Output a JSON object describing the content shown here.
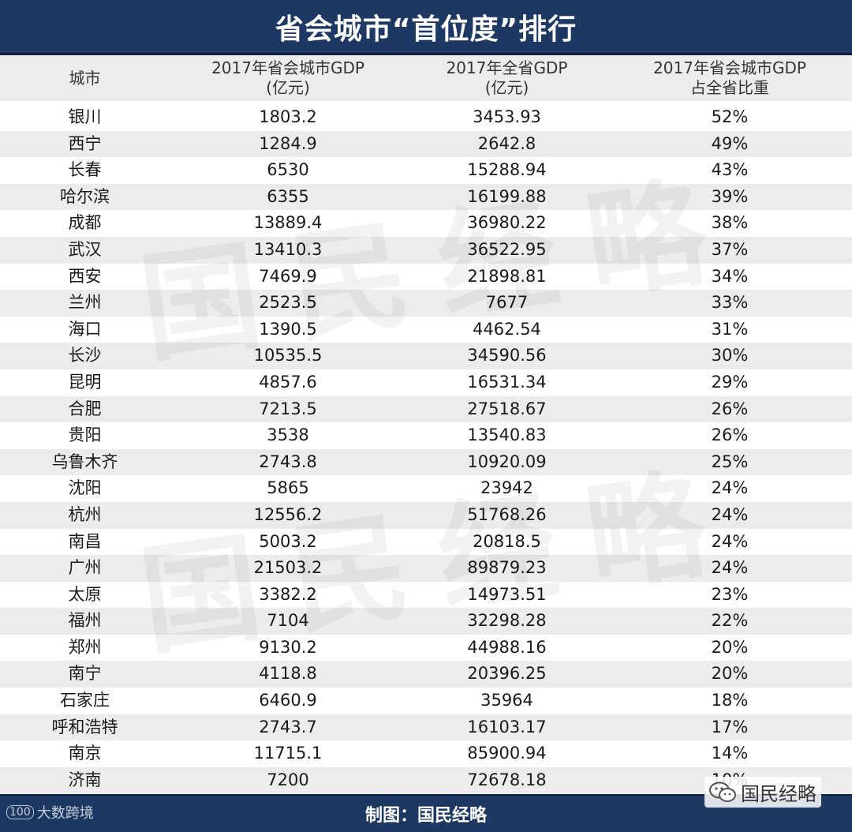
{
  "title": "省会城市“首位度”排行",
  "headers": {
    "city": "城市",
    "city_gdp_line1": "2017年省会城市GDP",
    "city_gdp_line2": "(亿元)",
    "prov_gdp_line1": "2017年全省GDP",
    "prov_gdp_line2": "(亿元)",
    "ratio_line1": "2017年省会城市GDP",
    "ratio_line2": "占全省比重"
  },
  "rows": [
    {
      "city": "银川",
      "gdp": "1803.2",
      "prov": "3453.93",
      "ratio": "52%"
    },
    {
      "city": "西宁",
      "gdp": "1284.9",
      "prov": "2642.8",
      "ratio": "49%"
    },
    {
      "city": "长春",
      "gdp": "6530",
      "prov": "15288.94",
      "ratio": "43%"
    },
    {
      "city": "哈尔滨",
      "gdp": "6355",
      "prov": "16199.88",
      "ratio": "39%"
    },
    {
      "city": "成都",
      "gdp": "13889.4",
      "prov": "36980.22",
      "ratio": "38%"
    },
    {
      "city": "武汉",
      "gdp": "13410.3",
      "prov": "36522.95",
      "ratio": "37%"
    },
    {
      "city": "西安",
      "gdp": "7469.9",
      "prov": "21898.81",
      "ratio": "34%"
    },
    {
      "city": "兰州",
      "gdp": "2523.5",
      "prov": "7677",
      "ratio": "33%"
    },
    {
      "city": "海口",
      "gdp": "1390.5",
      "prov": "4462.54",
      "ratio": "31%"
    },
    {
      "city": "长沙",
      "gdp": "10535.5",
      "prov": "34590.56",
      "ratio": "30%"
    },
    {
      "city": "昆明",
      "gdp": "4857.6",
      "prov": "16531.34",
      "ratio": "29%"
    },
    {
      "city": "合肥",
      "gdp": "7213.5",
      "prov": "27518.67",
      "ratio": "26%"
    },
    {
      "city": "贵阳",
      "gdp": "3538",
      "prov": "13540.83",
      "ratio": "26%"
    },
    {
      "city": "乌鲁木齐",
      "gdp": "2743.8",
      "prov": "10920.09",
      "ratio": "25%"
    },
    {
      "city": "沈阳",
      "gdp": "5865",
      "prov": "23942",
      "ratio": "24%"
    },
    {
      "city": "杭州",
      "gdp": "12556.2",
      "prov": "51768.26",
      "ratio": "24%"
    },
    {
      "city": "南昌",
      "gdp": "5003.2",
      "prov": "20818.5",
      "ratio": "24%"
    },
    {
      "city": "广州",
      "gdp": "21503.2",
      "prov": "89879.23",
      "ratio": "24%"
    },
    {
      "city": "太原",
      "gdp": "3382.2",
      "prov": "14973.51",
      "ratio": "23%"
    },
    {
      "city": "福州",
      "gdp": "7104",
      "prov": "32298.28",
      "ratio": "22%"
    },
    {
      "city": "郑州",
      "gdp": "9130.2",
      "prov": "44988.16",
      "ratio": "20%"
    },
    {
      "city": "南宁",
      "gdp": "4118.8",
      "prov": "20396.25",
      "ratio": "20%"
    },
    {
      "city": "石家庄",
      "gdp": "6460.9",
      "prov": "35964",
      "ratio": "18%"
    },
    {
      "city": "呼和浩特",
      "gdp": "2743.7",
      "prov": "16103.17",
      "ratio": "17%"
    },
    {
      "city": "南京",
      "gdp": "11715.1",
      "prov": "85900.94",
      "ratio": "14%"
    },
    {
      "city": "济南",
      "gdp": "7200",
      "prov": "72678.18",
      "ratio": "10%"
    }
  ],
  "watermark_text": "国民经略",
  "footer_text": "制图：国民经略",
  "corner_logo_text": "大数跨境",
  "corner_logo_mark": "100",
  "wechat_account": "国民经略",
  "colors": {
    "title_bg": "#1d3963",
    "header_bg": "#ececec",
    "stripe_bg": "#ececec"
  }
}
